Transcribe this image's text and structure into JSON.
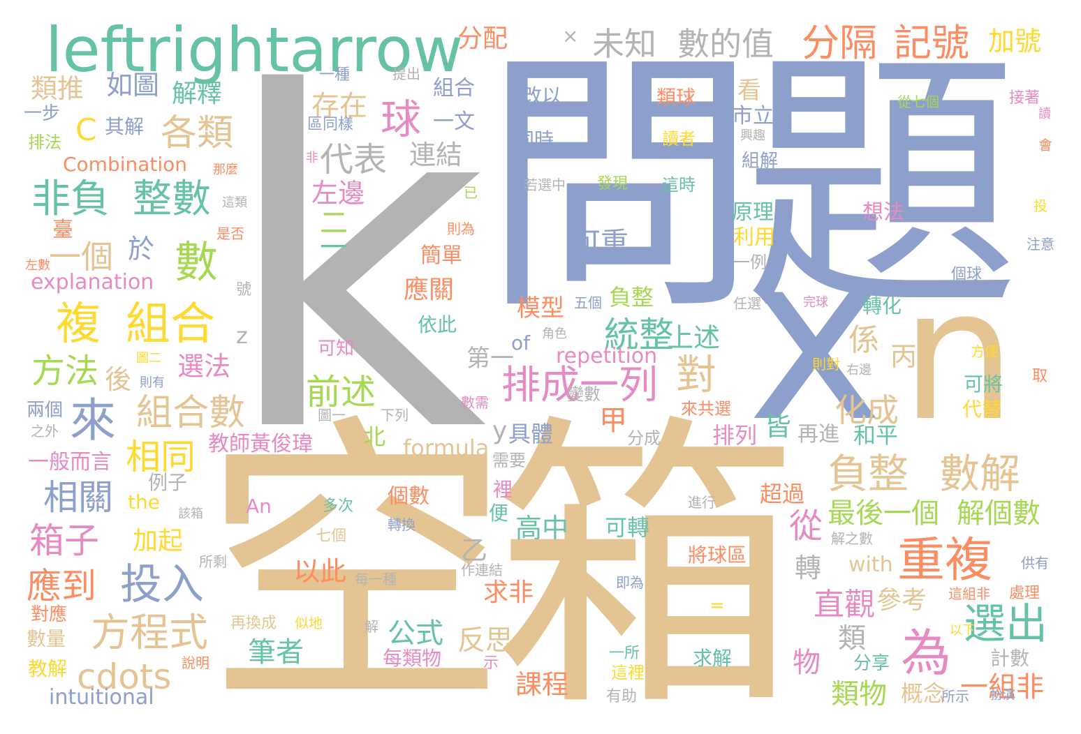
{
  "palette": {
    "gray": "#b3b3b3",
    "blue": "#8da0cb",
    "tan": "#e5c494",
    "green": "#66c2a5",
    "orange": "#fc8d62",
    "pink": "#e78ac3",
    "lime": "#a6d854",
    "yellow": "#ffd92f"
  },
  "words": [
    {
      "text": "k",
      "color": "gray"
    },
    {
      "text": "問題",
      "color": "blue"
    },
    {
      "text": "空箱",
      "color": "tan"
    },
    {
      "text": "x",
      "color": "blue"
    },
    {
      "text": "n",
      "color": "tan"
    },
    {
      "text": "leftrightarrow",
      "color": "green"
    },
    {
      "text": "未知",
      "color": "gray"
    },
    {
      "text": "數的值",
      "color": "gray"
    },
    {
      "text": "分隔",
      "color": "orange"
    },
    {
      "text": "記號",
      "color": "orange"
    },
    {
      "text": "分配",
      "color": "orange"
    },
    {
      "text": "加號",
      "color": "yellow"
    },
    {
      "text": "重複",
      "color": "orange"
    },
    {
      "text": "為",
      "color": "pink"
    },
    {
      "text": "選出",
      "color": "green"
    },
    {
      "text": "負整",
      "color": "tan"
    },
    {
      "text": "數解",
      "color": "tan"
    },
    {
      "text": "排成一列",
      "color": "pink"
    },
    {
      "text": "統整",
      "color": "green"
    },
    {
      "text": "複",
      "color": "yellow"
    },
    {
      "text": "組合",
      "color": "yellow"
    },
    {
      "text": "非負",
      "color": "green"
    },
    {
      "text": "整數",
      "color": "green"
    },
    {
      "text": "組合數",
      "color": "tan"
    },
    {
      "text": "方程式",
      "color": "tan"
    },
    {
      "text": "投入",
      "color": "blue"
    },
    {
      "text": "來",
      "color": "blue"
    },
    {
      "text": "數",
      "color": "lime"
    },
    {
      "text": "各類",
      "color": "tan"
    },
    {
      "text": "cdots",
      "color": "tan"
    },
    {
      "text": "相同",
      "color": "yellow"
    },
    {
      "text": "箱子",
      "color": "pink"
    },
    {
      "text": "應到",
      "color": "orange"
    },
    {
      "text": "相關",
      "color": "blue"
    },
    {
      "text": "方法",
      "color": "lime"
    },
    {
      "text": "前述",
      "color": "lime"
    },
    {
      "text": "球",
      "color": "pink"
    },
    {
      "text": "代表",
      "color": "gray"
    },
    {
      "text": "存在",
      "color": "tan"
    },
    {
      "text": "可重",
      "color": "blue"
    },
    {
      "text": "化成",
      "color": "tan"
    },
    {
      "text": "對",
      "color": "tan"
    },
    {
      "text": "直觀",
      "color": "pink"
    },
    {
      "text": "最後一個",
      "color": "lime"
    },
    {
      "text": "解個數",
      "color": "lime"
    },
    {
      "text": "從",
      "color": "pink"
    },
    {
      "text": "上述",
      "color": "green"
    },
    {
      "text": "係",
      "color": "tan"
    },
    {
      "text": "丙",
      "color": "tan"
    },
    {
      "text": "高中",
      "color": "green"
    },
    {
      "text": "可轉",
      "color": "green"
    },
    {
      "text": "以此",
      "color": "orange"
    },
    {
      "text": "公式",
      "color": "green"
    },
    {
      "text": "反思",
      "color": "tan"
    },
    {
      "text": "筆者",
      "color": "green"
    },
    {
      "text": "求非",
      "color": "orange"
    },
    {
      "text": "課程",
      "color": "orange"
    },
    {
      "text": "類物",
      "color": "lime"
    },
    {
      "text": "一組非",
      "color": "orange"
    },
    {
      "text": "概念",
      "color": "tan"
    },
    {
      "text": "參考",
      "color": "tan"
    },
    {
      "text": "轉",
      "color": "gray"
    },
    {
      "text": "類",
      "color": "gray"
    },
    {
      "text": "物",
      "color": "pink"
    },
    {
      "text": "計數",
      "color": "gray"
    },
    {
      "text": "分享",
      "color": "green"
    },
    {
      "text": "教師黃俊瑋",
      "color": "pink"
    },
    {
      "text": "formula",
      "color": "tan"
    },
    {
      "text": "repetition",
      "color": "pink"
    },
    {
      "text": "explanation",
      "color": "pink"
    },
    {
      "text": "Combination",
      "color": "orange"
    },
    {
      "text": "intuitional",
      "color": "blue"
    },
    {
      "text": "with",
      "color": "tan"
    },
    {
      "text": "the",
      "color": "yellow"
    },
    {
      "text": "An",
      "color": "pink"
    },
    {
      "text": "of",
      "color": "blue"
    },
    {
      "text": "C",
      "color": "yellow"
    },
    {
      "text": "z",
      "color": "gray"
    },
    {
      "text": "y",
      "color": "gray"
    },
    {
      "text": "乙",
      "color": "gray"
    },
    {
      "text": "甲",
      "color": "orange"
    },
    {
      "text": "第一",
      "color": "gray"
    },
    {
      "text": "二",
      "color": "lime"
    },
    {
      "text": "一",
      "color": "green"
    },
    {
      "text": "=",
      "color": "yellow"
    },
    {
      "text": "類推",
      "color": "tan"
    },
    {
      "text": "如圖",
      "color": "blue"
    },
    {
      "text": "解釋",
      "color": "green"
    },
    {
      "text": "其解",
      "color": "blue"
    },
    {
      "text": "一步",
      "color": "blue"
    },
    {
      "text": "排法",
      "color": "lime"
    },
    {
      "text": "連結",
      "color": "gray"
    },
    {
      "text": "左邊",
      "color": "pink"
    },
    {
      "text": "一個",
      "color": "tan"
    },
    {
      "text": "於",
      "color": "blue"
    },
    {
      "text": "臺",
      "color": "orange"
    },
    {
      "text": "後",
      "color": "tan"
    },
    {
      "text": "選法",
      "color": "pink"
    },
    {
      "text": "加起",
      "color": "yellow"
    },
    {
      "text": "一般而言",
      "color": "pink"
    },
    {
      "text": "例子",
      "color": "gray"
    },
    {
      "text": "數量",
      "color": "tan"
    },
    {
      "text": "教解",
      "color": "yellow"
    },
    {
      "text": "對應",
      "color": "orange"
    },
    {
      "text": "兩個",
      "color": "blue"
    },
    {
      "text": "模型",
      "color": "orange"
    },
    {
      "text": "負整",
      "color": "lime"
    },
    {
      "text": "具體",
      "color": "blue"
    },
    {
      "text": "北",
      "color": "lime"
    },
    {
      "text": "皆",
      "color": "green"
    },
    {
      "text": "再進",
      "color": "gray"
    },
    {
      "text": "和平",
      "color": "green"
    },
    {
      "text": "排列",
      "color": "pink"
    },
    {
      "text": "轉化",
      "color": "green"
    },
    {
      "text": "超過",
      "color": "orange"
    },
    {
      "text": "應關",
      "color": "orange"
    },
    {
      "text": "簡單",
      "color": "orange"
    },
    {
      "text": "依此",
      "color": "green"
    },
    {
      "text": "可知",
      "color": "pink"
    },
    {
      "text": "原理",
      "color": "green"
    },
    {
      "text": "利用",
      "color": "yellow"
    },
    {
      "text": "一例",
      "color": "gray"
    },
    {
      "text": "想法",
      "color": "pink"
    },
    {
      "text": "看",
      "color": "tan"
    },
    {
      "text": "市立",
      "color": "blue"
    },
    {
      "text": "改以",
      "color": "blue"
    },
    {
      "text": "同時",
      "color": "blue"
    },
    {
      "text": "類球",
      "color": "orange"
    },
    {
      "text": "讀者",
      "color": "yellow"
    },
    {
      "text": "組解",
      "color": "blue"
    },
    {
      "text": "發現",
      "color": "lime"
    },
    {
      "text": "這時",
      "color": "green"
    },
    {
      "text": "若選中",
      "color": "gray"
    },
    {
      "text": "一種",
      "color": "blue"
    },
    {
      "text": "提出",
      "color": "gray"
    },
    {
      "text": "組合",
      "color": "blue"
    },
    {
      "text": "一文",
      "color": "blue"
    },
    {
      "text": "區同樣",
      "color": "blue"
    },
    {
      "text": "個數",
      "color": "orange"
    },
    {
      "text": "裡",
      "color": "pink"
    },
    {
      "text": "便",
      "color": "green"
    },
    {
      "text": "需要",
      "color": "gray"
    },
    {
      "text": "分成",
      "color": "gray"
    },
    {
      "text": "多次",
      "color": "green"
    },
    {
      "text": "轉換",
      "color": "blue"
    },
    {
      "text": "七個",
      "color": "tan"
    },
    {
      "text": "每一種",
      "color": "gray"
    },
    {
      "text": "作連結",
      "color": "gray"
    },
    {
      "text": "將球區",
      "color": "orange"
    },
    {
      "text": "求解",
      "color": "green"
    },
    {
      "text": "每類物",
      "color": "pink"
    },
    {
      "text": "再換成",
      "color": "tan"
    },
    {
      "text": "似地",
      "color": "yellow"
    },
    {
      "text": "解",
      "color": "gray"
    },
    {
      "text": "示",
      "color": "pink"
    },
    {
      "text": "一所",
      "color": "green"
    },
    {
      "text": "這裡",
      "color": "yellow"
    },
    {
      "text": "有助",
      "color": "gray"
    },
    {
      "text": "即為",
      "color": "blue"
    },
    {
      "text": "所剩",
      "color": "gray"
    },
    {
      "text": "之外",
      "color": "gray"
    },
    {
      "text": "下列",
      "color": "gray"
    },
    {
      "text": "圖一",
      "color": "gray"
    },
    {
      "text": "圖二",
      "color": "yellow"
    },
    {
      "text": "則有",
      "color": "blue"
    },
    {
      "text": "數需",
      "color": "pink"
    },
    {
      "text": "變數",
      "color": "gray"
    },
    {
      "text": "角色",
      "color": "gray"
    },
    {
      "text": "五個",
      "color": "blue"
    },
    {
      "text": "則對",
      "color": "yellow"
    },
    {
      "text": "右邊",
      "color": "gray"
    },
    {
      "text": "來共選",
      "color": "orange"
    },
    {
      "text": "進行",
      "color": "gray"
    },
    {
      "text": "該箱",
      "color": "gray"
    },
    {
      "text": "解之數",
      "color": "gray"
    },
    {
      "text": "這組非",
      "color": "orange"
    },
    {
      "text": "處理",
      "color": "orange"
    },
    {
      "text": "供有",
      "color": "blue"
    },
    {
      "text": "以下",
      "color": "yellow"
    },
    {
      "text": "所示",
      "color": "blue"
    },
    {
      "text": "扮演",
      "color": "blue"
    },
    {
      "text": "說明",
      "color": "orange"
    },
    {
      "text": "代替",
      "color": "yellow"
    },
    {
      "text": "可將",
      "color": "green"
    },
    {
      "text": "方便",
      "color": "yellow"
    },
    {
      "text": "取",
      "color": "orange"
    },
    {
      "text": "個球",
      "color": "blue"
    },
    {
      "text": "注意",
      "color": "blue"
    },
    {
      "text": "投",
      "color": "yellow"
    },
    {
      "text": "會",
      "color": "orange"
    },
    {
      "text": "讀",
      "color": "pink"
    },
    {
      "text": "接著",
      "color": "pink"
    },
    {
      "text": "從七個",
      "color": "lime"
    },
    {
      "text": "興趣",
      "color": "gray"
    },
    {
      "text": "完球",
      "color": "pink"
    },
    {
      "text": "任選",
      "color": "gray"
    },
    {
      "text": "已",
      "color": "lime"
    },
    {
      "text": "則為",
      "color": "orange"
    },
    {
      "text": "非",
      "color": "pink"
    },
    {
      "text": "那麼",
      "color": "orange"
    },
    {
      "text": "這類",
      "color": "gray"
    },
    {
      "text": "是否",
      "color": "orange"
    },
    {
      "text": "左數",
      "color": "orange"
    },
    {
      "text": "號",
      "color": "gray"
    }
  ]
}
